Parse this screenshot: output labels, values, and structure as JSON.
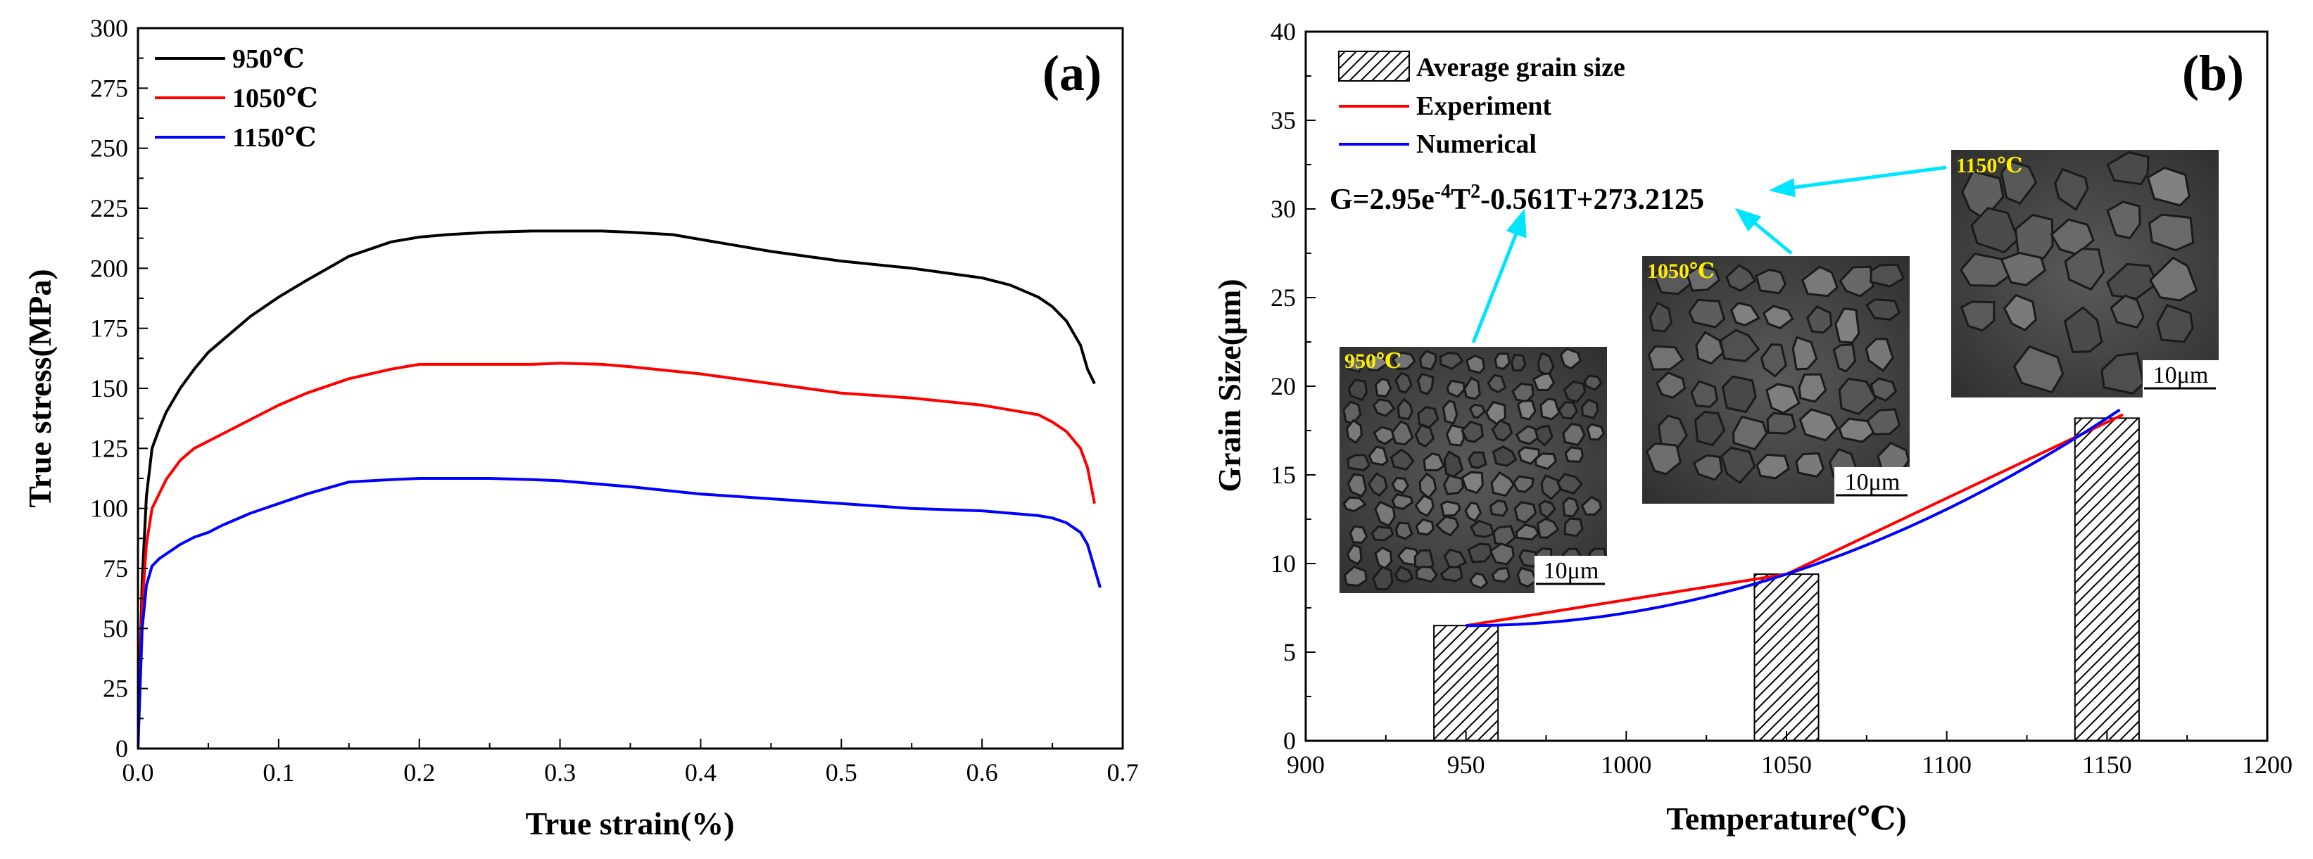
{
  "chart_data": [
    {
      "type": "line",
      "panel_label": "(a)",
      "xlabel": "True strain(%)",
      "ylabel": "True stress(MPa)",
      "xlim": [
        0,
        0.7
      ],
      "ylim": [
        0,
        300
      ],
      "xticks": [
        0,
        0.1,
        0.2,
        0.3,
        0.4,
        0.5,
        0.6,
        0.7
      ],
      "xtick_labels": [
        "0.0",
        "0.1",
        "0.2",
        "0.3",
        "0.4",
        "0.5",
        "0.6",
        "0.7"
      ],
      "yticks": [
        0,
        25,
        50,
        75,
        100,
        125,
        150,
        175,
        200,
        225,
        250,
        275,
        300
      ],
      "ytick_labels": [
        "0",
        "25",
        "50",
        "75",
        "100",
        "125",
        "150",
        "175",
        "200",
        "225",
        "250",
        "275",
        "300"
      ],
      "legend_position": "top-left",
      "series": [
        {
          "name": "950℃",
          "color": "#000000",
          "x": [
            0,
            0.003,
            0.006,
            0.01,
            0.015,
            0.02,
            0.03,
            0.04,
            0.05,
            0.06,
            0.08,
            0.1,
            0.12,
            0.15,
            0.18,
            0.2,
            0.22,
            0.25,
            0.28,
            0.3,
            0.33,
            0.35,
            0.38,
            0.4,
            0.45,
            0.5,
            0.55,
            0.6,
            0.62,
            0.64,
            0.65,
            0.66,
            0.67,
            0.675,
            0.68
          ],
          "y": [
            0,
            70,
            105,
            125,
            133,
            140,
            150,
            158,
            165,
            170,
            180,
            188,
            195,
            205,
            211,
            213,
            214,
            215,
            215.5,
            215.5,
            215.5,
            215,
            214,
            212,
            207,
            203,
            200,
            196,
            193,
            188,
            184,
            178,
            168,
            158,
            152
          ]
        },
        {
          "name": "1050℃",
          "color": "#ff0000",
          "x": [
            0,
            0.003,
            0.006,
            0.01,
            0.015,
            0.02,
            0.03,
            0.04,
            0.05,
            0.06,
            0.08,
            0.1,
            0.12,
            0.15,
            0.18,
            0.2,
            0.22,
            0.25,
            0.28,
            0.3,
            0.33,
            0.35,
            0.4,
            0.45,
            0.5,
            0.55,
            0.6,
            0.62,
            0.64,
            0.65,
            0.66,
            0.67,
            0.675,
            0.68
          ],
          "y": [
            0,
            60,
            85,
            100,
            106,
            112,
            120,
            125,
            128,
            131,
            137,
            143,
            148,
            154,
            158,
            160,
            160,
            160,
            160,
            160.5,
            160,
            159,
            156,
            152,
            148,
            146,
            143,
            141,
            139,
            136,
            132,
            125,
            117,
            102
          ]
        },
        {
          "name": "1150℃",
          "color": "#0000ff",
          "x": [
            0,
            0.003,
            0.006,
            0.01,
            0.015,
            0.02,
            0.03,
            0.04,
            0.05,
            0.06,
            0.08,
            0.1,
            0.12,
            0.15,
            0.18,
            0.2,
            0.22,
            0.25,
            0.28,
            0.3,
            0.35,
            0.4,
            0.45,
            0.5,
            0.55,
            0.6,
            0.62,
            0.64,
            0.65,
            0.66,
            0.67,
            0.675,
            0.68,
            0.684
          ],
          "y": [
            0,
            50,
            68,
            76,
            79,
            81,
            85,
            88,
            90,
            93,
            98,
            102,
            106,
            111,
            112,
            112.5,
            112.5,
            112.5,
            112,
            111.5,
            109,
            106,
            104,
            102,
            100,
            99,
            98,
            97,
            96,
            94,
            90,
            85,
            75,
            67
          ]
        }
      ]
    },
    {
      "type": "bar+line",
      "panel_label": "(b)",
      "xlabel": "Temperature(℃)",
      "ylabel": "Grain Size(μm)",
      "xlim": [
        900,
        1200
      ],
      "ylim": [
        0,
        40
      ],
      "xticks": [
        900,
        950,
        1000,
        1050,
        1100,
        1150,
        1200
      ],
      "xtick_labels": [
        "900",
        "950",
        "1000",
        "1050",
        "1100",
        "1150",
        "1200"
      ],
      "yticks": [
        0,
        5,
        10,
        15,
        20,
        25,
        30,
        35,
        40
      ],
      "ytick_labels": [
        "0",
        "5",
        "10",
        "15",
        "20",
        "25",
        "30",
        "35",
        "40"
      ],
      "legend_position": "top-left",
      "bars": {
        "name": "Average grain size",
        "x": [
          950,
          1050,
          1150
        ],
        "values": [
          6.5,
          9.4,
          18.2
        ],
        "bar_width_data": 20
      },
      "lines": [
        {
          "name": "Experiment",
          "color": "#ff0000",
          "x": [
            950,
            1050,
            1155
          ],
          "y": [
            6.5,
            9.4,
            18.4
          ]
        },
        {
          "name": "Numerical",
          "color": "#0000ff",
          "fit": [
            0.000295,
            -0.561,
            273.2125
          ],
          "range": [
            950,
            1155
          ]
        }
      ],
      "equation": {
        "prefix": "G=2.95e",
        "exp1": "-4",
        "mid": "T",
        "exp2": "2",
        "suffix": "-0.561T+273.2125"
      },
      "micrographs": [
        {
          "label": "950℃",
          "scale": "10μm"
        },
        {
          "label": "1050℃",
          "scale": "10μm"
        },
        {
          "label": "1150℃",
          "scale": "10μm"
        }
      ],
      "arrow_color": "#00e5ff"
    }
  ]
}
